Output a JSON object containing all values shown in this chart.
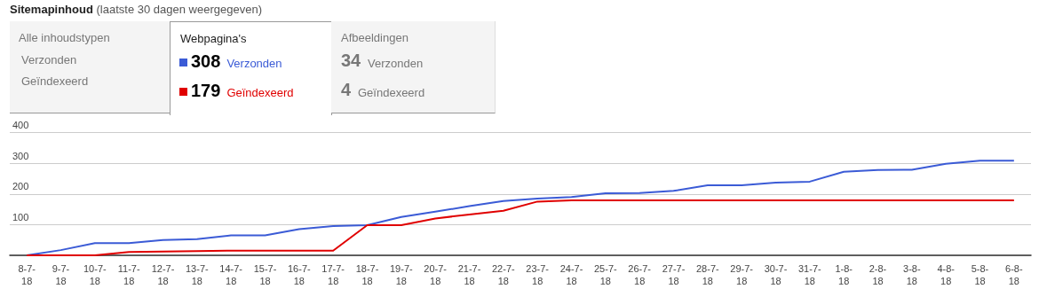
{
  "chart_data": {
    "type": "line",
    "title": "Sitemapinhoud",
    "subtitle": "(laatste 30 dagen weergegeven)",
    "legend_title": "Webpagina's",
    "legend": "top left",
    "grid": "y",
    "marker": "none",
    "line_style": "solid",
    "categories": [
      "8-7-18",
      "9-7-18",
      "10-7-18",
      "11-7-18",
      "12-7-18",
      "13-7-18",
      "14-7-18",
      "15-7-18",
      "16-7-18",
      "17-7-18",
      "18-7-18",
      "19-7-18",
      "20-7-18",
      "21-7-18",
      "22-7-18",
      "23-7-18",
      "24-7-18",
      "25-7-18",
      "26-7-18",
      "27-7-18",
      "28-7-18",
      "29-7-18",
      "30-7-18",
      "31-7-18",
      "1-8-18",
      "2-8-18",
      "3-8-18",
      "4-8-18",
      "5-8-18",
      "6-8-18"
    ],
    "ylim": [
      0,
      400
    ],
    "yticks": [
      {
        "value": 0,
        "label": null
      },
      100,
      200,
      300,
      400
    ],
    "series": [
      {
        "name": "Verzonden",
        "color": "#3b5bd6",
        "values": [
          0,
          17,
          40,
          40,
          50,
          53,
          65,
          65,
          85,
          95,
          98,
          125,
          142,
          160,
          177,
          185,
          190,
          202,
          203,
          210,
          228,
          228,
          237,
          240,
          272,
          278,
          279,
          298,
          308,
          308
        ]
      },
      {
        "name": "Geïndexeerd",
        "color": "#e00000",
        "values": [
          0,
          0,
          0,
          11,
          12,
          14,
          15,
          15,
          15,
          15,
          98,
          98,
          120,
          133,
          145,
          175,
          179,
          179,
          179,
          179,
          179,
          179,
          179,
          179,
          179,
          179,
          179,
          179,
          179,
          179
        ]
      }
    ],
    "annotations": [
      "Alle inhoudstypen",
      "Verzonden",
      "Geïndexeerd",
      "Afbeeldingen",
      "34",
      "Verzonden",
      "4",
      "Geïndexeerd",
      "308",
      "179"
    ]
  }
}
